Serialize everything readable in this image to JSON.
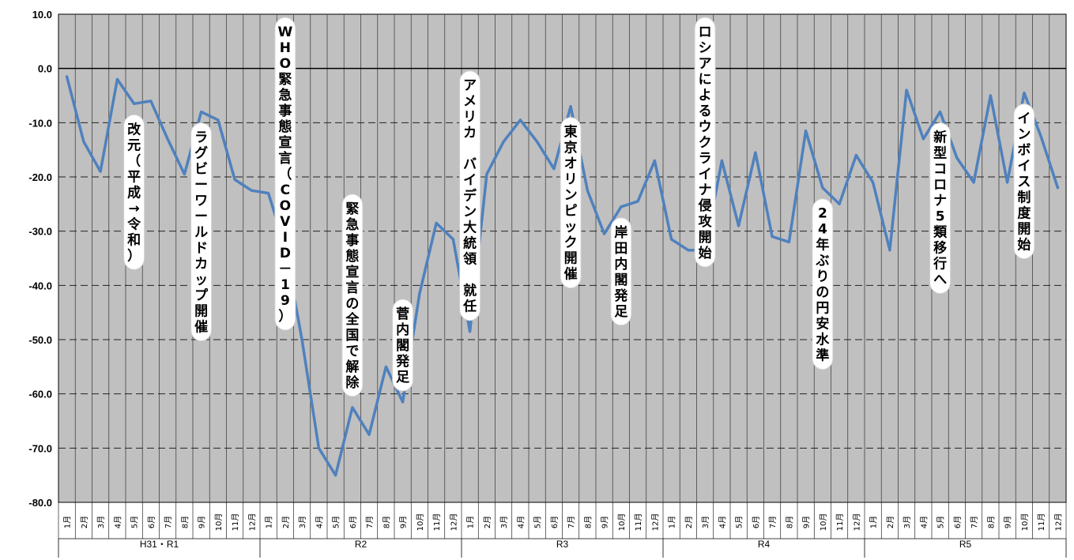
{
  "chart_data": {
    "type": "line",
    "ylim": [
      -80,
      10
    ],
    "yticks": [
      "10.0",
      "0.0",
      "-10.0",
      "-20.0",
      "-30.0",
      "-40.0",
      "-50.0",
      "-60.0",
      "-70.0",
      "-80.0"
    ],
    "month_labels": [
      "1月",
      "2月",
      "3月",
      "4月",
      "5月",
      "6月",
      "7月",
      "8月",
      "9月",
      "10月",
      "11月",
      "12月"
    ],
    "year_groups": [
      {
        "label": "H31・R1",
        "months": 12
      },
      {
        "label": "R2",
        "months": 12
      },
      {
        "label": "R3",
        "months": 12
      },
      {
        "label": "R4",
        "months": 12
      },
      {
        "label": "R5",
        "months": 12
      }
    ],
    "grid": true,
    "line_color": "#4f81bd",
    "plot_bg": "#c0c0c0",
    "series": [
      {
        "values": [
          -1.5,
          -13.5,
          -19.0,
          -2.0,
          -6.5,
          -6.0,
          -13.0,
          -19.5,
          -8.0,
          -9.5,
          -20.5,
          -22.5,
          -23.0,
          -33.0,
          -50.0,
          -70.0,
          -75.0,
          -62.5,
          -67.5,
          -55.0,
          -61.5,
          -41.5,
          -28.5,
          -31.5,
          -48.5,
          -19.5,
          -13.5,
          -9.5,
          -13.5,
          -18.5,
          -7.0,
          -22.5,
          -30.5,
          -25.5,
          -24.5,
          -17.0,
          -31.5,
          -33.5,
          -33.5,
          -17.0,
          -29.0,
          -15.5,
          -31.0,
          -32.0,
          -11.5,
          -22.0,
          -25.0,
          -16.0,
          -21.0,
          -33.5,
          -4.0,
          -13.0,
          -8.0,
          -16.5,
          -21.0,
          -5.0,
          -21.0,
          -4.5,
          -12.5,
          -22.0
        ]
      }
    ],
    "annotations": [
      {
        "text": "改元（平成→令和）",
        "index": 4
      },
      {
        "text": "ラグビーワールドカップ開催",
        "index": 8
      },
      {
        "text": "WHO緊急事態宣言（COVID－19）",
        "index": 13
      },
      {
        "text": "緊急事態宣言の全国で解除",
        "index": 17
      },
      {
        "text": "菅内閣発足",
        "index": 20
      },
      {
        "text": "アメリカ　バイデン大統領　就任",
        "index": 24
      },
      {
        "text": "東京オリンピック開催",
        "index": 30
      },
      {
        "text": "岸田内閣発足",
        "index": 33
      },
      {
        "text": "ロシアによるウクライナ侵攻開始",
        "index": 38
      },
      {
        "text": "24年ぶりの円安水準",
        "index": 45
      },
      {
        "text": "新型コロナ5類移行へ",
        "index": 52
      },
      {
        "text": "インボイス制度開始",
        "index": 57
      }
    ]
  }
}
